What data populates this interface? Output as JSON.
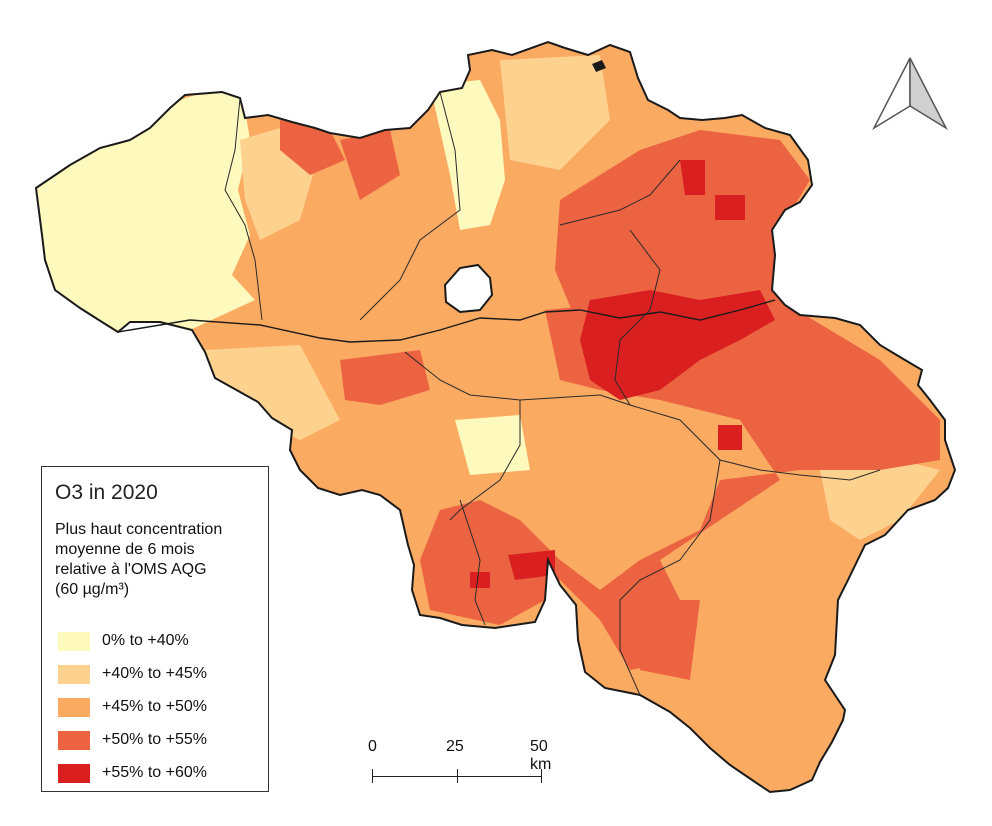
{
  "legend": {
    "title": "O3 in 2020",
    "subtitle": "Plus haut concentration\nmoyenne de 6 mois\nrelative à  l'OMS AQG\n(60 µg/m³)",
    "classes": [
      {
        "label": "0% to +40%",
        "color": "#fef9bd"
      },
      {
        "label": "+40% to +45%",
        "color": "#fdd28f"
      },
      {
        "label": "+45% to +50%",
        "color": "#fbaa62"
      },
      {
        "label": "+50% to +55%",
        "color": "#ec6342"
      },
      {
        "label": "+55% to +60%",
        "color": "#d91f1f"
      }
    ]
  },
  "scale_bar": {
    "labels": [
      "0",
      "25",
      "50 km"
    ]
  },
  "north_arrow": {
    "icon": "north-arrow-icon"
  },
  "map": {
    "border_color": "#1a1a1a",
    "region_color": "#2a2a2a"
  }
}
